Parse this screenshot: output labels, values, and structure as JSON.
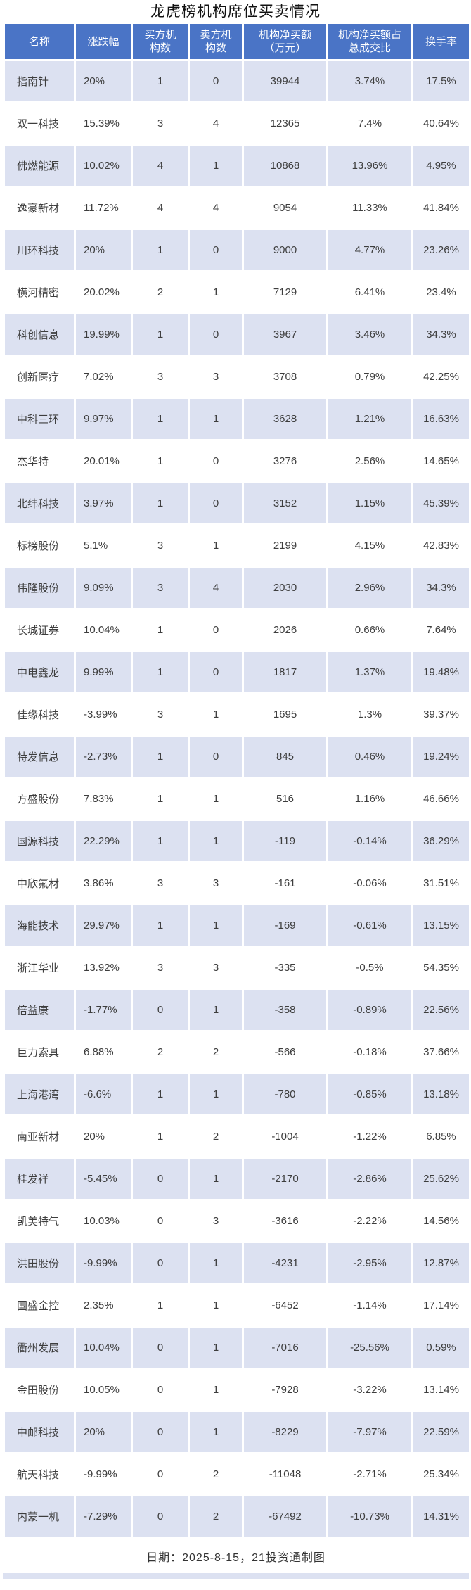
{
  "page": {
    "title": "龙虎榜机构席位买卖情况",
    "footer_note": "日期：2025-8-15，21投资通制图"
  },
  "colors": {
    "header_bg": "#4a74c6",
    "header_text": "#ffffff",
    "row_alt_bg": "#dce1f1",
    "row_bg": "#ffffff",
    "cell_text": "#3d3d3d",
    "title_text": "#111111"
  },
  "chart_data": {
    "type": "table",
    "title": "龙虎榜机构席位买卖情况",
    "columns": [
      "名称",
      "涨跌幅",
      "买方机构数",
      "卖方机构数",
      "机构净买额（万元）",
      "机构净买额占总成交比",
      "换手率"
    ],
    "columns_display": [
      "名称",
      "涨跌幅",
      "买方机\n构数",
      "卖方机\n构数",
      "机构净买额\n（万元）",
      "机构净买额占\n总成交比",
      "换手率"
    ],
    "rows": [
      [
        "指南针",
        "20%",
        "1",
        "0",
        "39944",
        "3.74%",
        "17.5%"
      ],
      [
        "双一科技",
        "15.39%",
        "3",
        "4",
        "12365",
        "7.4%",
        "40.64%"
      ],
      [
        "佛燃能源",
        "10.02%",
        "4",
        "1",
        "10868",
        "13.96%",
        "4.95%"
      ],
      [
        "逸豪新材",
        "11.72%",
        "4",
        "4",
        "9054",
        "11.33%",
        "41.84%"
      ],
      [
        "川环科技",
        "20%",
        "1",
        "0",
        "9000",
        "4.77%",
        "23.26%"
      ],
      [
        "横河精密",
        "20.02%",
        "2",
        "1",
        "7129",
        "6.41%",
        "23.4%"
      ],
      [
        "科创信息",
        "19.99%",
        "1",
        "0",
        "3967",
        "3.46%",
        "34.3%"
      ],
      [
        "创新医疗",
        "7.02%",
        "3",
        "3",
        "3708",
        "0.79%",
        "42.25%"
      ],
      [
        "中科三环",
        "9.97%",
        "1",
        "1",
        "3628",
        "1.21%",
        "16.63%"
      ],
      [
        "杰华特",
        "20.01%",
        "1",
        "0",
        "3276",
        "2.56%",
        "14.65%"
      ],
      [
        "北纬科技",
        "3.97%",
        "1",
        "0",
        "3152",
        "1.15%",
        "45.39%"
      ],
      [
        "标榜股份",
        "5.1%",
        "3",
        "1",
        "2199",
        "4.15%",
        "42.83%"
      ],
      [
        "伟隆股份",
        "9.09%",
        "3",
        "4",
        "2030",
        "2.96%",
        "34.3%"
      ],
      [
        "长城证券",
        "10.04%",
        "1",
        "0",
        "2026",
        "0.66%",
        "7.64%"
      ],
      [
        "中电鑫龙",
        "9.99%",
        "1",
        "0",
        "1817",
        "1.37%",
        "19.48%"
      ],
      [
        "佳缘科技",
        "-3.99%",
        "3",
        "1",
        "1695",
        "1.3%",
        "39.37%"
      ],
      [
        "特发信息",
        "-2.73%",
        "1",
        "0",
        "845",
        "0.46%",
        "19.24%"
      ],
      [
        "方盛股份",
        "7.83%",
        "1",
        "1",
        "516",
        "1.16%",
        "46.66%"
      ],
      [
        "国源科技",
        "22.29%",
        "1",
        "1",
        "-119",
        "-0.14%",
        "36.29%"
      ],
      [
        "中欣氟材",
        "3.86%",
        "3",
        "3",
        "-161",
        "-0.06%",
        "31.51%"
      ],
      [
        "海能技术",
        "29.97%",
        "1",
        "1",
        "-169",
        "-0.61%",
        "13.15%"
      ],
      [
        "浙江华业",
        "13.92%",
        "3",
        "3",
        "-335",
        "-0.5%",
        "54.35%"
      ],
      [
        "倍益康",
        "-1.77%",
        "0",
        "1",
        "-358",
        "-0.89%",
        "22.56%"
      ],
      [
        "巨力索具",
        "6.88%",
        "2",
        "2",
        "-566",
        "-0.18%",
        "37.66%"
      ],
      [
        "上海港湾",
        "-6.6%",
        "1",
        "1",
        "-780",
        "-0.85%",
        "13.18%"
      ],
      [
        "南亚新材",
        "20%",
        "1",
        "2",
        "-1004",
        "-1.22%",
        "6.85%"
      ],
      [
        "桂发祥",
        "-5.45%",
        "0",
        "1",
        "-2170",
        "-2.86%",
        "25.62%"
      ],
      [
        "凯美特气",
        "10.03%",
        "0",
        "3",
        "-3616",
        "-2.22%",
        "14.56%"
      ],
      [
        "洪田股份",
        "-9.99%",
        "0",
        "1",
        "-4231",
        "-2.95%",
        "12.87%"
      ],
      [
        "国盛金控",
        "2.35%",
        "1",
        "1",
        "-6452",
        "-1.14%",
        "17.14%"
      ],
      [
        "衢州发展",
        "10.04%",
        "0",
        "1",
        "-7016",
        "-25.56%",
        "0.59%"
      ],
      [
        "金田股份",
        "10.05%",
        "0",
        "1",
        "-7928",
        "-3.22%",
        "13.14%"
      ],
      [
        "中邮科技",
        "20%",
        "0",
        "1",
        "-8229",
        "-7.97%",
        "22.59%"
      ],
      [
        "航天科技",
        "-9.99%",
        "0",
        "2",
        "-11048",
        "-2.71%",
        "25.34%"
      ],
      [
        "内蒙一机",
        "-7.29%",
        "0",
        "2",
        "-67492",
        "-10.73%",
        "14.31%"
      ]
    ],
    "source_note": "日期：2025-8-15，21投资通制图"
  }
}
